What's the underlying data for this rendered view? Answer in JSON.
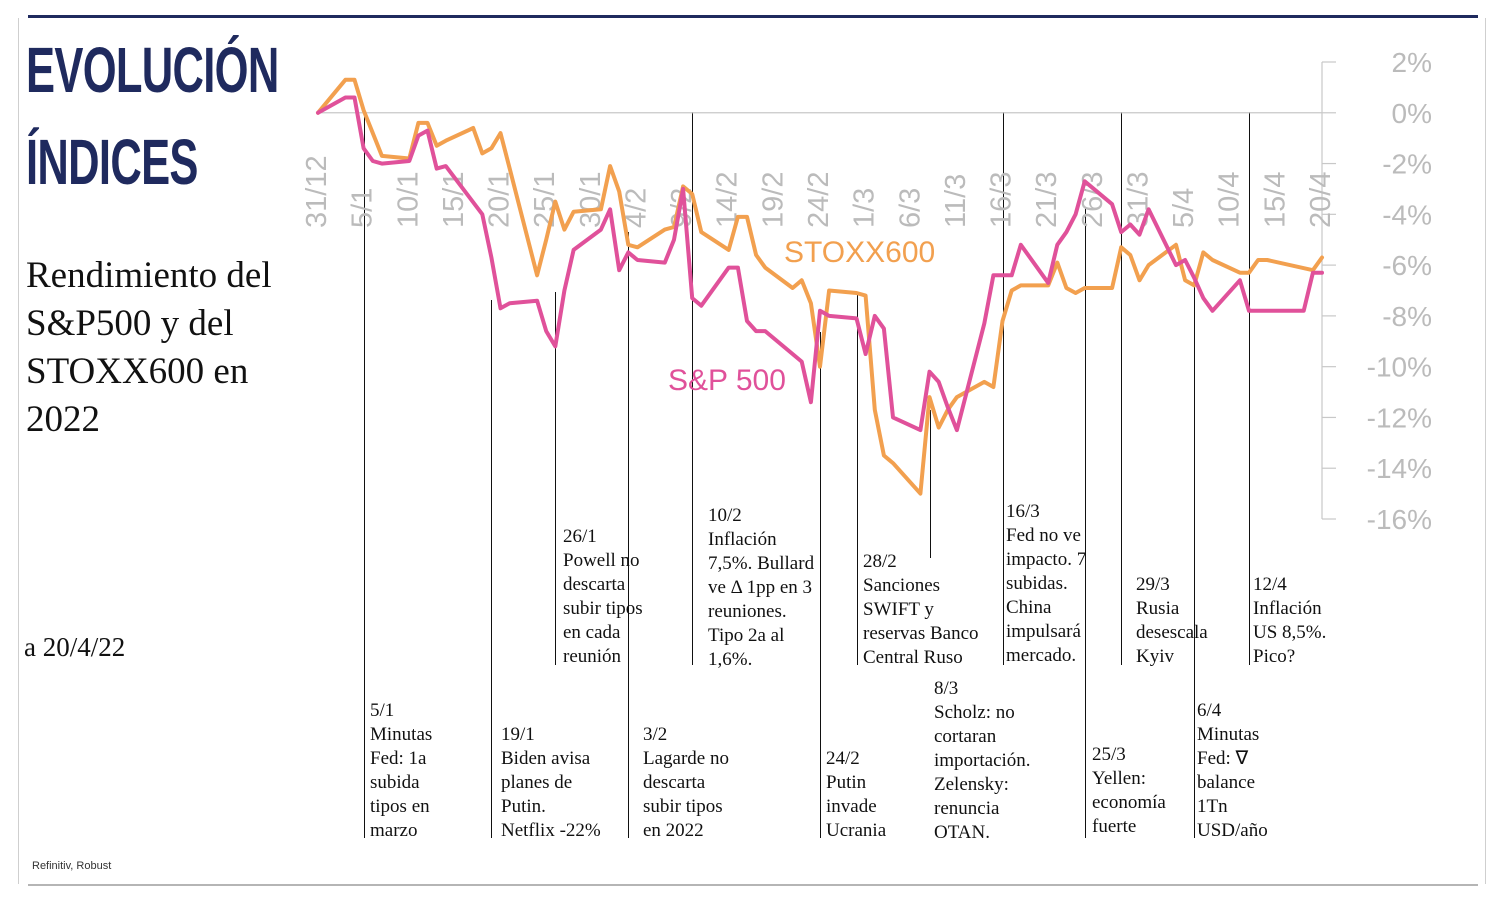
{
  "headline": "EVOLUCIÓN ÍNDICES",
  "subtitle": "Rendimiento del S&P500 y del STOXX600 en 2022",
  "date_note": "a 20/4/22",
  "source": "Refinitiv, Robust",
  "colors": {
    "navy": "#1f2a5e",
    "sp500": "#e0519a",
    "stoxx600": "#f2a04f",
    "axis": "#c8c8c8",
    "tick_text": "#bbbbbb"
  },
  "chart_data": {
    "type": "line",
    "y_unit": "%",
    "ylim": [
      -16,
      2
    ],
    "y_ticks": [
      "2%",
      "0%",
      "-2%",
      "-4%",
      "-6%",
      "-8%",
      "-10%",
      "-12%",
      "-14%",
      "-16%"
    ],
    "x_ticks": [
      "31/12",
      "5/1",
      "10/1",
      "15/1",
      "20/1",
      "25/1",
      "30/1",
      "4/2",
      "9/2",
      "14/2",
      "19/2",
      "24/2",
      "1/3",
      "6/3",
      "11/3",
      "16/3",
      "21/3",
      "26/3",
      "31/3",
      "5/4",
      "10/4",
      "15/4",
      "20/4"
    ],
    "series": [
      {
        "name": "STOXX600",
        "x": [
          "31/12",
          "3/1",
          "4/1",
          "5/1",
          "6/1",
          "7/1",
          "10/1",
          "11/1",
          "12/1",
          "13/1",
          "14/1",
          "17/1",
          "18/1",
          "19/1",
          "20/1",
          "21/1",
          "24/1",
          "25/1",
          "26/1",
          "27/1",
          "28/1",
          "31/1",
          "1/2",
          "2/2",
          "3/2",
          "4/2",
          "7/2",
          "8/2",
          "9/2",
          "10/2",
          "11/2",
          "14/2",
          "15/2",
          "16/2",
          "17/2",
          "18/2",
          "21/2",
          "22/2",
          "23/2",
          "24/2",
          "25/2",
          "28/2",
          "1/3",
          "2/3",
          "3/3",
          "4/3",
          "7/3",
          "8/3",
          "9/3",
          "10/3",
          "11/3",
          "14/3",
          "15/3",
          "16/3",
          "17/3",
          "18/3",
          "21/3",
          "22/3",
          "23/3",
          "24/3",
          "25/3",
          "28/3",
          "29/3",
          "30/3",
          "31/3",
          "1/4",
          "4/4",
          "5/4",
          "6/4",
          "7/4",
          "8/4",
          "11/4",
          "12/4",
          "13/4",
          "14/4",
          "19/4",
          "20/4"
        ],
        "y": [
          0,
          1.3,
          1.3,
          0.1,
          -0.8,
          -1.7,
          -1.8,
          -0.4,
          -0.4,
          -1.3,
          -1.1,
          -0.6,
          -1.6,
          -1.4,
          -0.8,
          -2.2,
          -6.4,
          -5.0,
          -3.5,
          -4.6,
          -3.9,
          -3.8,
          -2.1,
          -3.1,
          -5.2,
          -5.3,
          -4.6,
          -4.5,
          -2.9,
          -3.2,
          -4.7,
          -5.4,
          -4.1,
          -4.1,
          -5.6,
          -6.1,
          -6.9,
          -6.6,
          -7.5,
          -10.0,
          -7.0,
          -7.1,
          -7.2,
          -11.7,
          -13.5,
          -13.8,
          -15.0,
          -11.2,
          -12.4,
          -11.7,
          -11.2,
          -10.6,
          -10.8,
          -8.2,
          -7.0,
          -6.8,
          -6.8,
          -5.9,
          -6.9,
          -7.1,
          -6.9,
          -6.9,
          -5.3,
          -5.6,
          -6.6,
          -6.0,
          -5.2,
          -6.6,
          -6.8,
          -5.5,
          -5.8,
          -6.3,
          -6.3,
          -5.8,
          -5.8,
          -6.2,
          -5.7
        ]
      },
      {
        "name": "S&P 500",
        "x": [
          "31/12",
          "3/1",
          "4/1",
          "5/1",
          "6/1",
          "7/1",
          "10/1",
          "11/1",
          "12/1",
          "13/1",
          "14/1",
          "18/1",
          "19/1",
          "20/1",
          "21/1",
          "24/1",
          "25/1",
          "26/1",
          "27/1",
          "28/1",
          "31/1",
          "1/2",
          "2/2",
          "3/2",
          "4/2",
          "7/2",
          "8/2",
          "9/2",
          "10/2",
          "11/2",
          "14/2",
          "15/2",
          "16/2",
          "17/2",
          "18/2",
          "22/2",
          "23/2",
          "24/2",
          "25/2",
          "28/2",
          "1/3",
          "2/3",
          "3/3",
          "4/3",
          "7/3",
          "8/3",
          "9/3",
          "10/3",
          "11/3",
          "14/3",
          "15/3",
          "16/3",
          "17/3",
          "18/3",
          "21/3",
          "22/3",
          "23/3",
          "24/3",
          "25/3",
          "28/3",
          "29/3",
          "30/3",
          "31/3",
          "1/4",
          "4/4",
          "5/4",
          "6/4",
          "7/4",
          "8/4",
          "11/4",
          "12/4",
          "13/4",
          "14/4",
          "18/4",
          "19/4",
          "20/4"
        ],
        "y": [
          0,
          0.6,
          0.6,
          -1.4,
          -1.9,
          -2.0,
          -1.9,
          -0.9,
          -0.7,
          -2.2,
          -2.1,
          -4.0,
          -5.7,
          -7.7,
          -7.5,
          -7.4,
          -8.6,
          -9.2,
          -7.0,
          -5.4,
          -4.6,
          -3.8,
          -6.2,
          -5.5,
          -5.8,
          -5.9,
          -5.0,
          -3.0,
          -7.3,
          -7.6,
          -6.1,
          -6.1,
          -8.2,
          -8.6,
          -8.6,
          -9.8,
          -11.4,
          -7.8,
          -8.0,
          -8.1,
          -9.5,
          -8.0,
          -8.5,
          -12.0,
          -12.5,
          -10.2,
          -10.6,
          -11.6,
          -12.5,
          -8.3,
          -6.4,
          -6.4,
          -6.4,
          -5.2,
          -6.7,
          -5.2,
          -4.7,
          -4.0,
          -2.7,
          -3.6,
          -4.7,
          -4.4,
          -4.8,
          -3.8,
          -6.0,
          -5.8,
          -6.5,
          -7.3,
          -7.8,
          -6.6,
          -7.8,
          -7.8,
          -7.8,
          -7.8,
          -6.3,
          -6.3
        ]
      }
    ],
    "series_labels": {
      "STOXX600": "STOXX600",
      "S&P 500": "S&P 500"
    },
    "annotations": [
      {
        "date": "5/1",
        "label": "5/1",
        "text": "Minutas\nFed: 1a\nsubida\ntipos en\nmarzo"
      },
      {
        "date": "19/1",
        "label": "19/1",
        "text": "Biden avisa\nplanes de\nPutin.\nNetflix -22%"
      },
      {
        "date": "26/1",
        "label": "26/1",
        "text": "Powell no\ndescarta\nsubir tipos\nen cada\nreunión"
      },
      {
        "date": "3/2",
        "label": "3/2",
        "text": "Lagarde no\ndescarta\nsubir tipos\nen 2022"
      },
      {
        "date": "10/2",
        "label": "10/2",
        "text": "Inflación\n7,5%. Bullard\nve Δ 1pp en 3\nreuniones.\nTipo 2a al\n1,6%."
      },
      {
        "date": "24/2",
        "label": "24/2",
        "text": "Putin\ninvade\nUcrania"
      },
      {
        "date": "28/2",
        "label": "28/2",
        "text": "Sanciones\nSWIFT y\nreservas Banco\nCentral Ruso"
      },
      {
        "date": "8/3",
        "label": "8/3",
        "text": "Scholz: no\ncortaran\nimportación.\nZelensky:\nrenuncia\nOTAN."
      },
      {
        "date": "16/3",
        "label": "16/3",
        "text": "Fed no ve\nimpacto. 7\nsubidas.\nChina\nimpulsará\nmercado."
      },
      {
        "date": "25/3",
        "label": "25/3",
        "text": "Yellen:\neconomía\nfuerte"
      },
      {
        "date": "29/3",
        "label": "29/3",
        "text": "Rusia\ndesescala\nKyiv"
      },
      {
        "date": "6/4",
        "label": "6/4",
        "text": "Minutas\nFed: ∇\nbalance\n1Tn\nUSD/año"
      },
      {
        "date": "12/4",
        "label": "12/4",
        "text": "Inflación\nUS 8,5%.\nPico?"
      }
    ]
  }
}
